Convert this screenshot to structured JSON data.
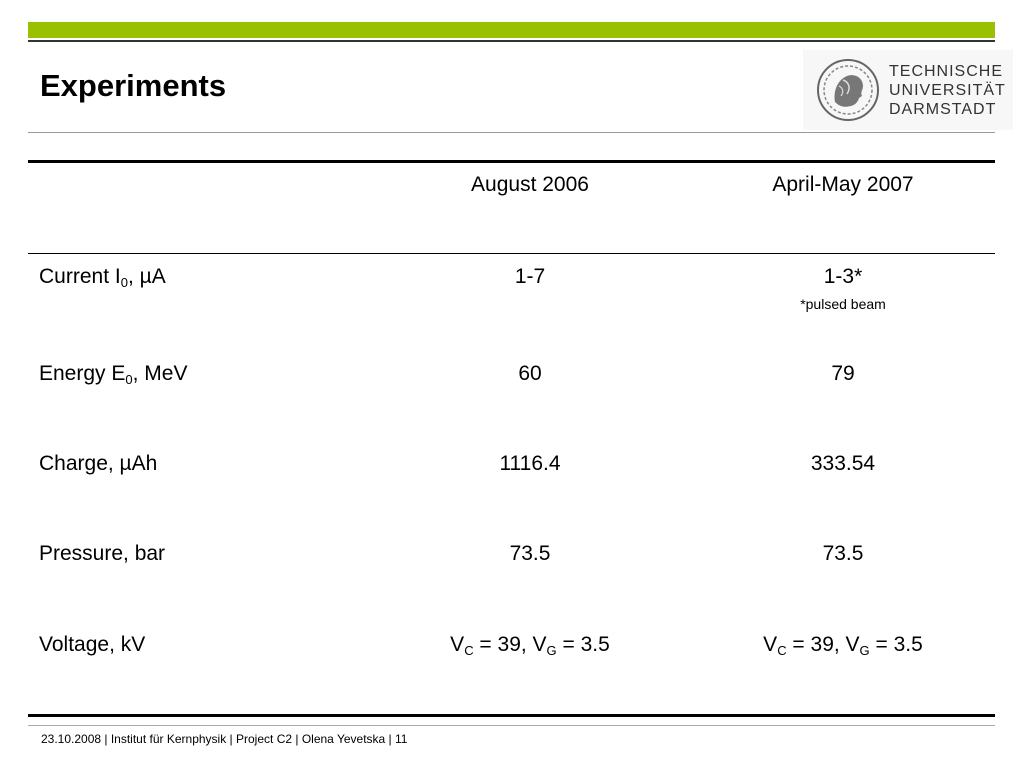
{
  "slide": {
    "title": "Experiments",
    "logo": {
      "line1": "TECHNISCHE",
      "line2": "UNIVERSITÄT",
      "line3": "DARMSTADT"
    },
    "footer": "23.10.2008  |  Institut für Kernphysik  |  Project C2  | Olena Yevetska  |  11"
  },
  "table": {
    "headers": [
      "",
      "August 2006",
      "April-May 2007"
    ],
    "rows": [
      {
        "label_main": "Current I",
        "label_sub": "0",
        "label_tail": ", µA",
        "aug": "1-7",
        "apr": "1-3*",
        "note": "*pulsed beam"
      },
      {
        "label_main": "Energy E",
        "label_sub": "0",
        "label_tail": ", MeV",
        "aug": "60",
        "apr": "79"
      },
      {
        "label": "Charge, µAh",
        "aug": "1116.4",
        "apr": "333.54"
      },
      {
        "label": "Pressure, bar",
        "aug": "73.5",
        "apr": "73.5"
      },
      {
        "label": "Voltage, kV",
        "aug": {
          "v1": "V",
          "s1": "C",
          "m1": " = 39, V",
          "s2": "G",
          "m2": " = 3.5"
        },
        "apr": {
          "v1": "V",
          "s1": "C",
          "m1": " = 39, V",
          "s2": "G",
          "m2": " = 3.5"
        }
      }
    ]
  }
}
